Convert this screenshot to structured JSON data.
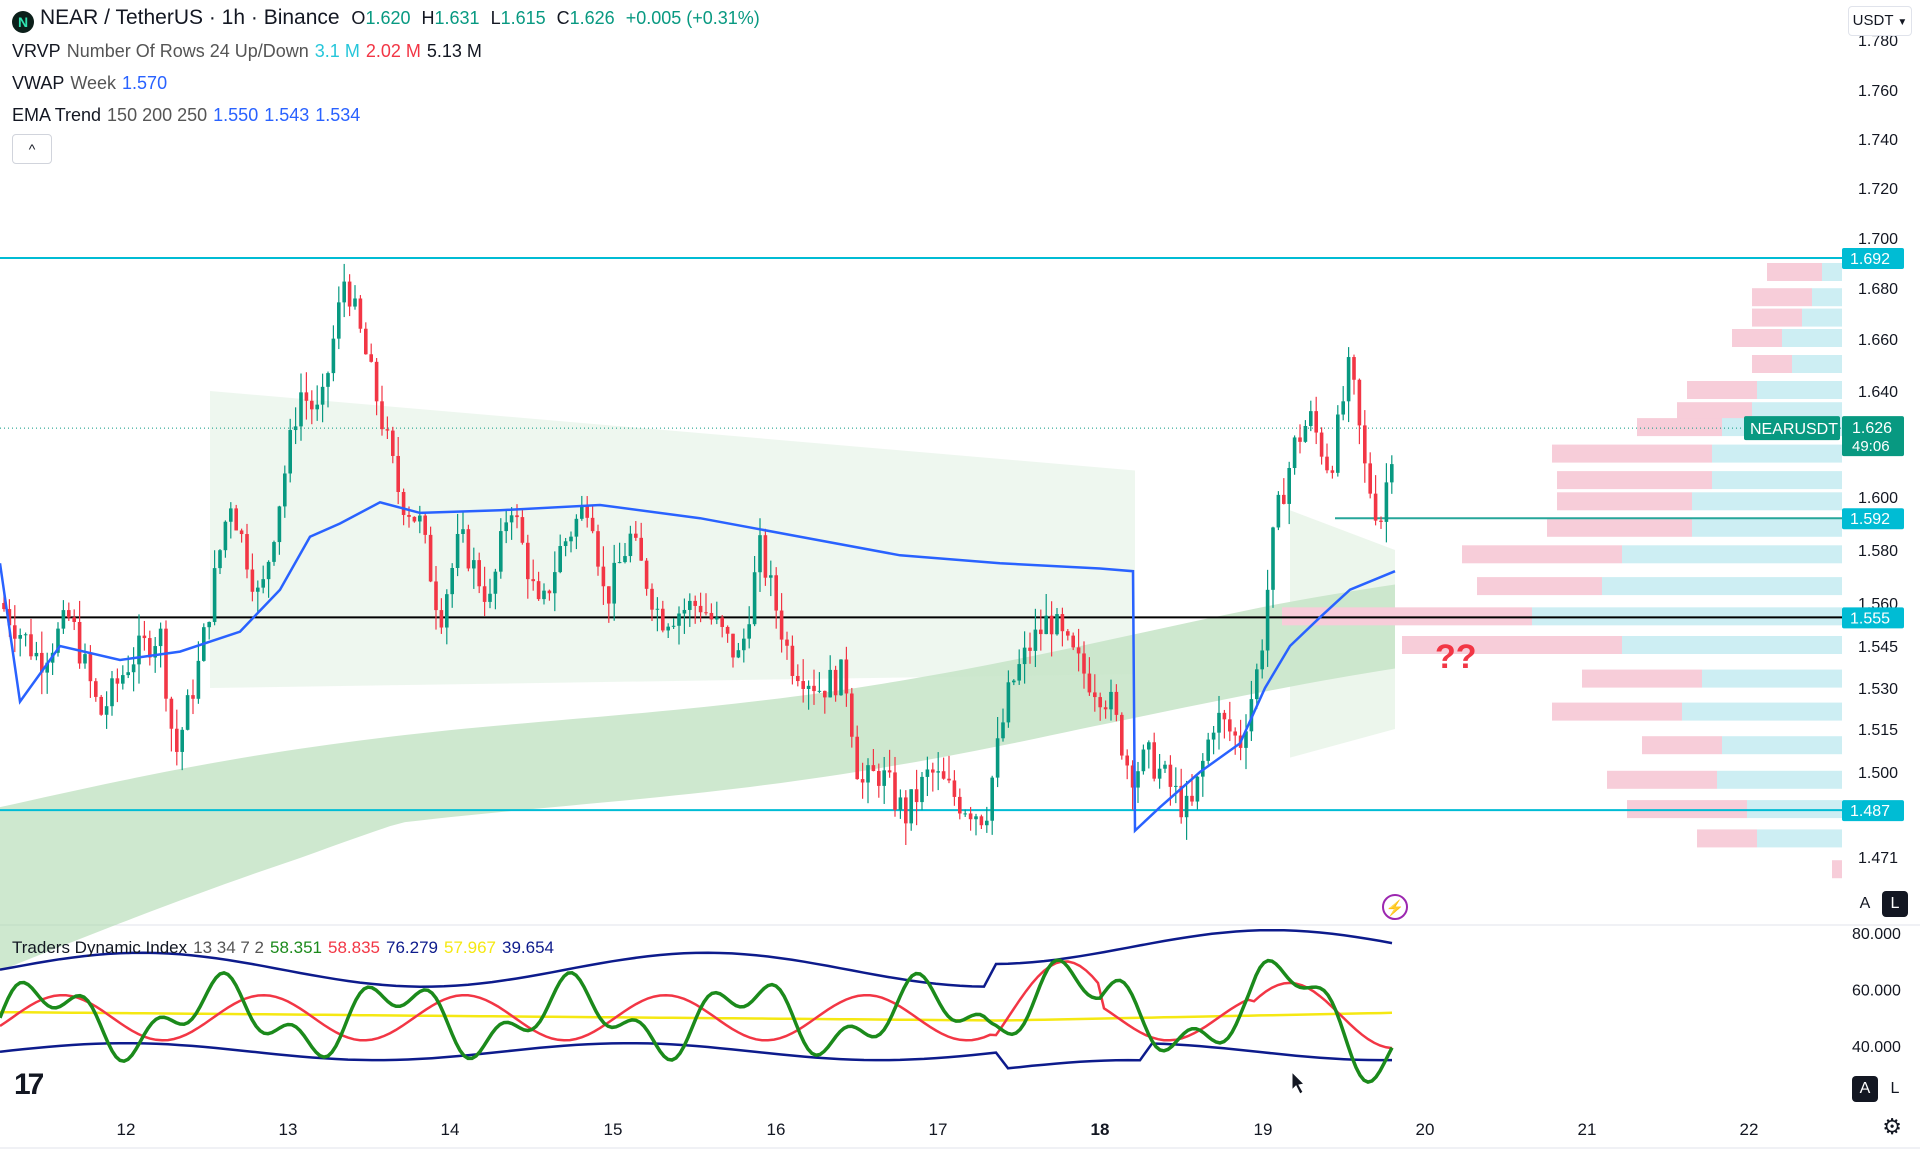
{
  "header": {
    "symbol_title": "NEAR / TetherUS · 1h · Binance",
    "logo_letter": "N",
    "ohlc": {
      "open_label": "O",
      "open": "1.620",
      "high_label": "H",
      "high": "1.631",
      "low_label": "L",
      "low": "1.615",
      "close_label": "C",
      "close": "1.626",
      "change": "+0.005 (+0.31%)"
    },
    "currency_button": "USDT"
  },
  "indicators": {
    "vrvp": {
      "name": "VRVP",
      "params": "Number Of Rows 24 Up/Down",
      "up": "3.1 M",
      "down": "2.02 M",
      "total": "5.13 M"
    },
    "vwap": {
      "name": "VWAP",
      "params": "Week",
      "value": "1.570"
    },
    "ema": {
      "name": "EMA Trend",
      "params": "150 200 250",
      "v1": "1.550",
      "v2": "1.543",
      "v3": "1.534"
    },
    "collapse_glyph": "^"
  },
  "tdi": {
    "name": "Traders Dynamic Index",
    "params": "13 34 7 2",
    "v1": "58.351",
    "v2": "58.835",
    "v3": "76.279",
    "v4": "57.967",
    "v5": "39.654",
    "axis_labels": [
      "80.000",
      "60.000",
      "40.000"
    ]
  },
  "price_axis": {
    "ticks": [
      "1.780",
      "1.760",
      "1.740",
      "1.720",
      "1.700",
      "1.680",
      "1.660",
      "1.640",
      "1.600",
      "1.580",
      "1.560",
      "1.545",
      "1.530",
      "1.515",
      "1.500",
      "1.471"
    ],
    "badges": {
      "resistance": "1.692",
      "current_symbol": "NEARUSDT",
      "current_price": "1.626",
      "countdown": "49:06",
      "level_mid": "1.592",
      "level_black": "1.555",
      "support": "1.487"
    }
  },
  "time_axis": [
    "12",
    "13",
    "14",
    "15",
    "16",
    "17",
    "18",
    "19",
    "20",
    "21",
    "22"
  ],
  "annotation_text": "??",
  "scale_buttons": {
    "auto": "A",
    "log": "L"
  },
  "logo_text": "17",
  "colors": {
    "up": "#089981",
    "down": "#f23645",
    "vwap": "#2962ff",
    "teal_line": "#00bcd4",
    "tdi_green": "#1b8a1b",
    "tdi_red": "#f23645",
    "tdi_navy": "#0d1b8c",
    "tdi_yellow": "#f5e812",
    "profile_up": "#cdeef3",
    "profile_down": "#f7cdd9"
  },
  "chart_data": {
    "type": "candlestick",
    "y_range": [
      1.465,
      1.785
    ],
    "tdi_range": [
      20,
      90
    ],
    "levels": {
      "resistance": 1.692,
      "black": 1.555,
      "mid": 1.592,
      "support": 1.487,
      "current": 1.626
    }
  }
}
